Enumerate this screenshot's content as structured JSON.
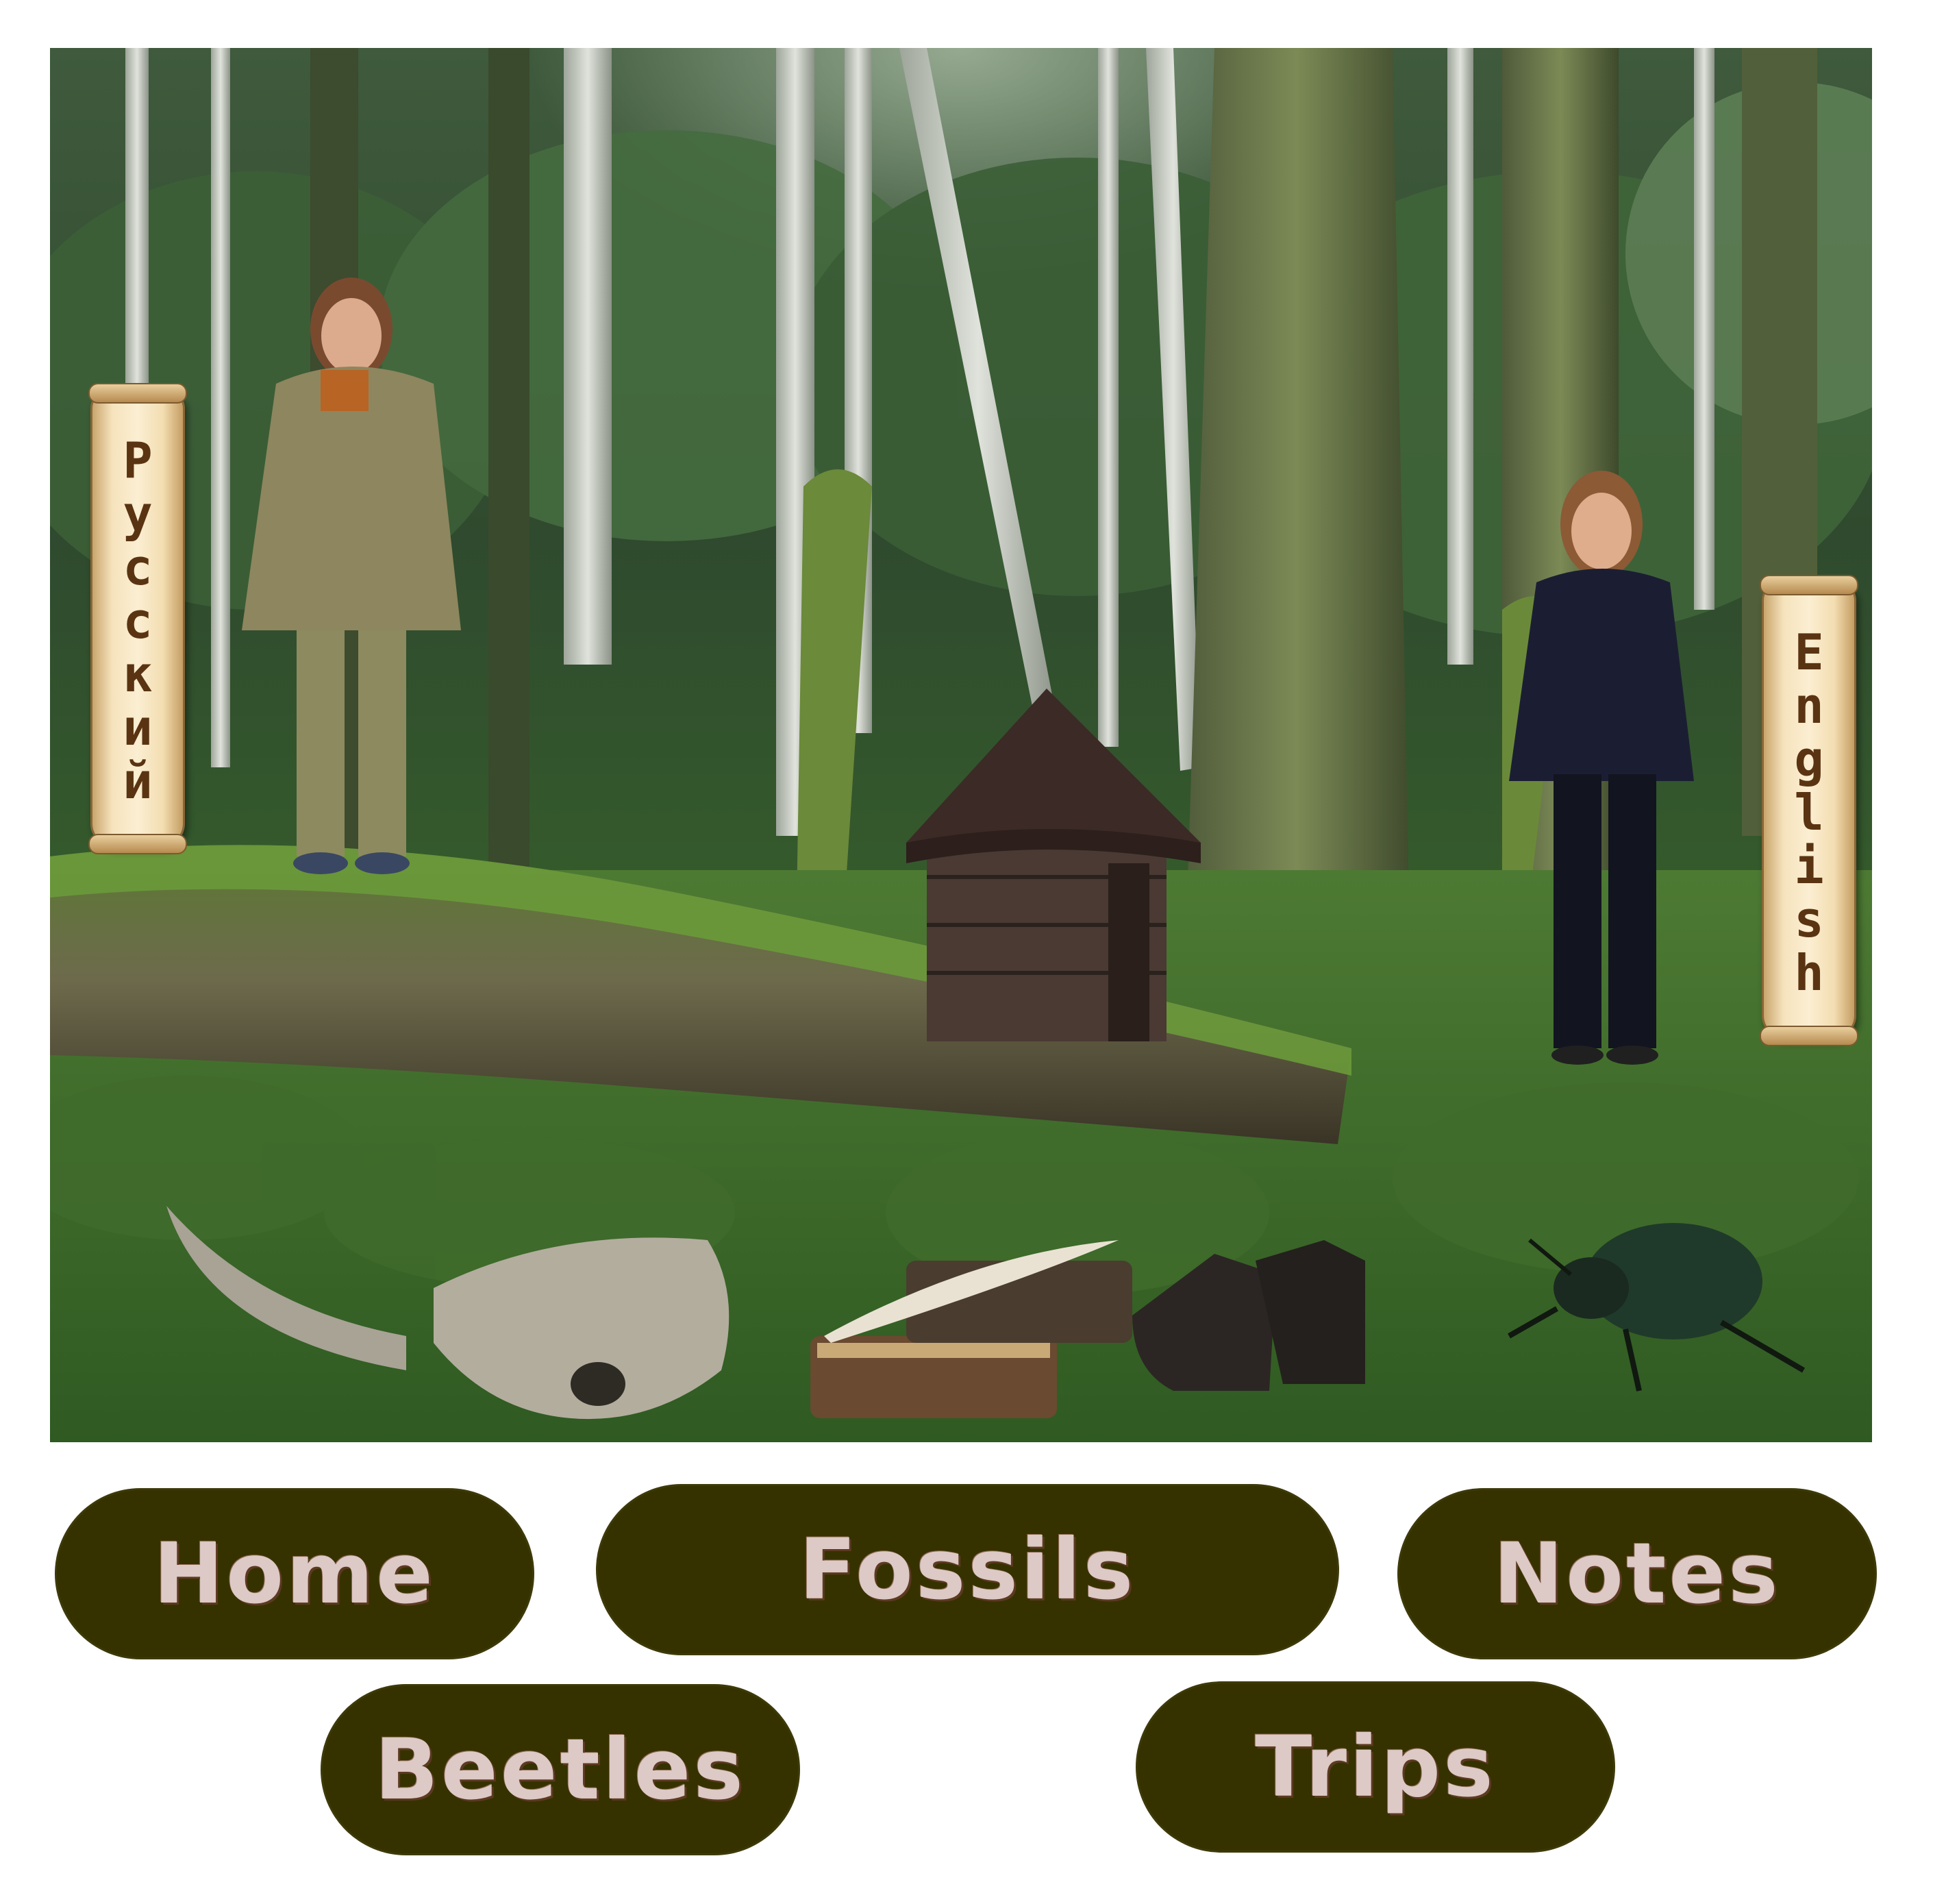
{
  "language_switch": {
    "russian_label": "Русский",
    "english_label": "English"
  },
  "nav": {
    "home": "Home",
    "fossils": "Fossils",
    "notes": "Notes",
    "beetles": "Beetles",
    "trips": "Trips"
  },
  "colors": {
    "nav_pill_bg": "#363200",
    "nav_text": "#ddc9c5",
    "scroll_text": "#5a3412"
  }
}
